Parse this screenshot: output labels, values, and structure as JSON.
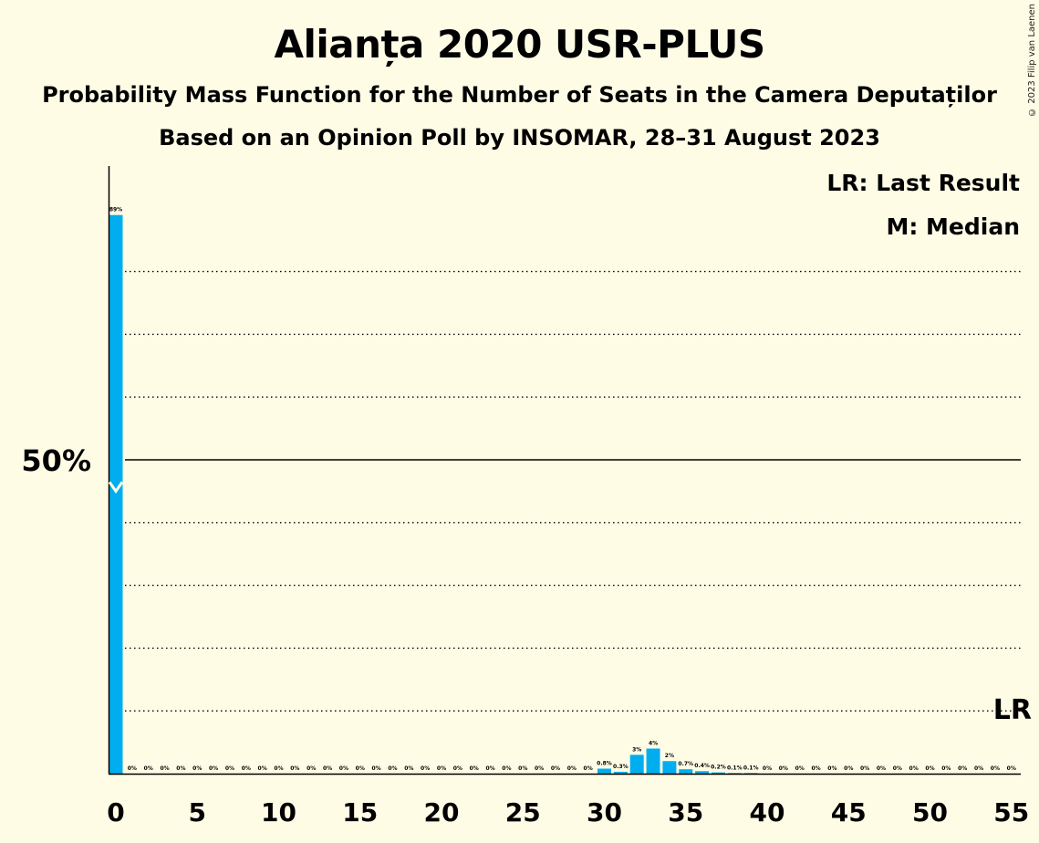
{
  "header": {
    "title": "Alianța 2020 USR-PLUS",
    "subtitle": "Probability Mass Function for the Number of Seats in the Camera Deputaților",
    "source": "Based on an Opinion Poll by INSOMAR, 28–31 August 2023",
    "copyright": "© 2023 Filip van Laenen"
  },
  "legend": {
    "last_result": "LR: Last Result",
    "median": "M: Median"
  },
  "colors": {
    "background": "#FFFCE6",
    "bar": "#00AEEF",
    "text": "#000000"
  },
  "chart_data": {
    "type": "bar",
    "title": "Alianța 2020 USR-PLUS",
    "xlabel": "",
    "ylabel": "",
    "x": [
      0,
      1,
      2,
      3,
      4,
      5,
      6,
      7,
      8,
      9,
      10,
      11,
      12,
      13,
      14,
      15,
      16,
      17,
      18,
      19,
      20,
      21,
      22,
      23,
      24,
      25,
      26,
      27,
      28,
      29,
      30,
      31,
      32,
      33,
      34,
      35,
      36,
      37,
      38,
      39,
      40,
      41,
      42,
      43,
      44,
      45,
      46,
      47,
      48,
      49,
      50,
      51,
      52,
      53,
      54,
      55
    ],
    "values": [
      89,
      0,
      0,
      0,
      0,
      0,
      0,
      0,
      0,
      0,
      0,
      0,
      0,
      0,
      0,
      0,
      0,
      0,
      0,
      0,
      0,
      0,
      0,
      0,
      0,
      0,
      0,
      0,
      0,
      0,
      0.8,
      0.3,
      3,
      4,
      2,
      0.7,
      0.4,
      0.2,
      0.1,
      0.1,
      0,
      0,
      0,
      0,
      0,
      0,
      0,
      0,
      0,
      0,
      0,
      0,
      0,
      0,
      0,
      0
    ],
    "value_labels": [
      "89%",
      "0%",
      "0%",
      "0%",
      "0%",
      "0%",
      "0%",
      "0%",
      "0%",
      "0%",
      "0%",
      "0%",
      "0%",
      "0%",
      "0%",
      "0%",
      "0%",
      "0%",
      "0%",
      "0%",
      "0%",
      "0%",
      "0%",
      "0%",
      "0%",
      "0%",
      "0%",
      "0%",
      "0%",
      "0%",
      "0.8%",
      "0.3%",
      "3%",
      "4%",
      "2%",
      "0.7%",
      "0.4%",
      "0.2%",
      "0.1%",
      "0.1%",
      "0%",
      "0%",
      "0%",
      "0%",
      "0%",
      "0%",
      "0%",
      "0%",
      "0%",
      "0%",
      "0%",
      "0%",
      "0%",
      "0%",
      "0%",
      "0%"
    ],
    "x_ticks": [
      0,
      5,
      10,
      15,
      20,
      25,
      30,
      35,
      40,
      45,
      50,
      55
    ],
    "y_tick_label": "50%",
    "ylim": [
      0,
      96
    ],
    "gridlines_dotted": [
      10,
      20,
      30,
      40,
      60,
      70,
      80
    ],
    "gridline_solid": 50,
    "median_seat": 0,
    "median_marker_y": 45,
    "last_result_seat": 55,
    "last_result_label": "LR"
  }
}
